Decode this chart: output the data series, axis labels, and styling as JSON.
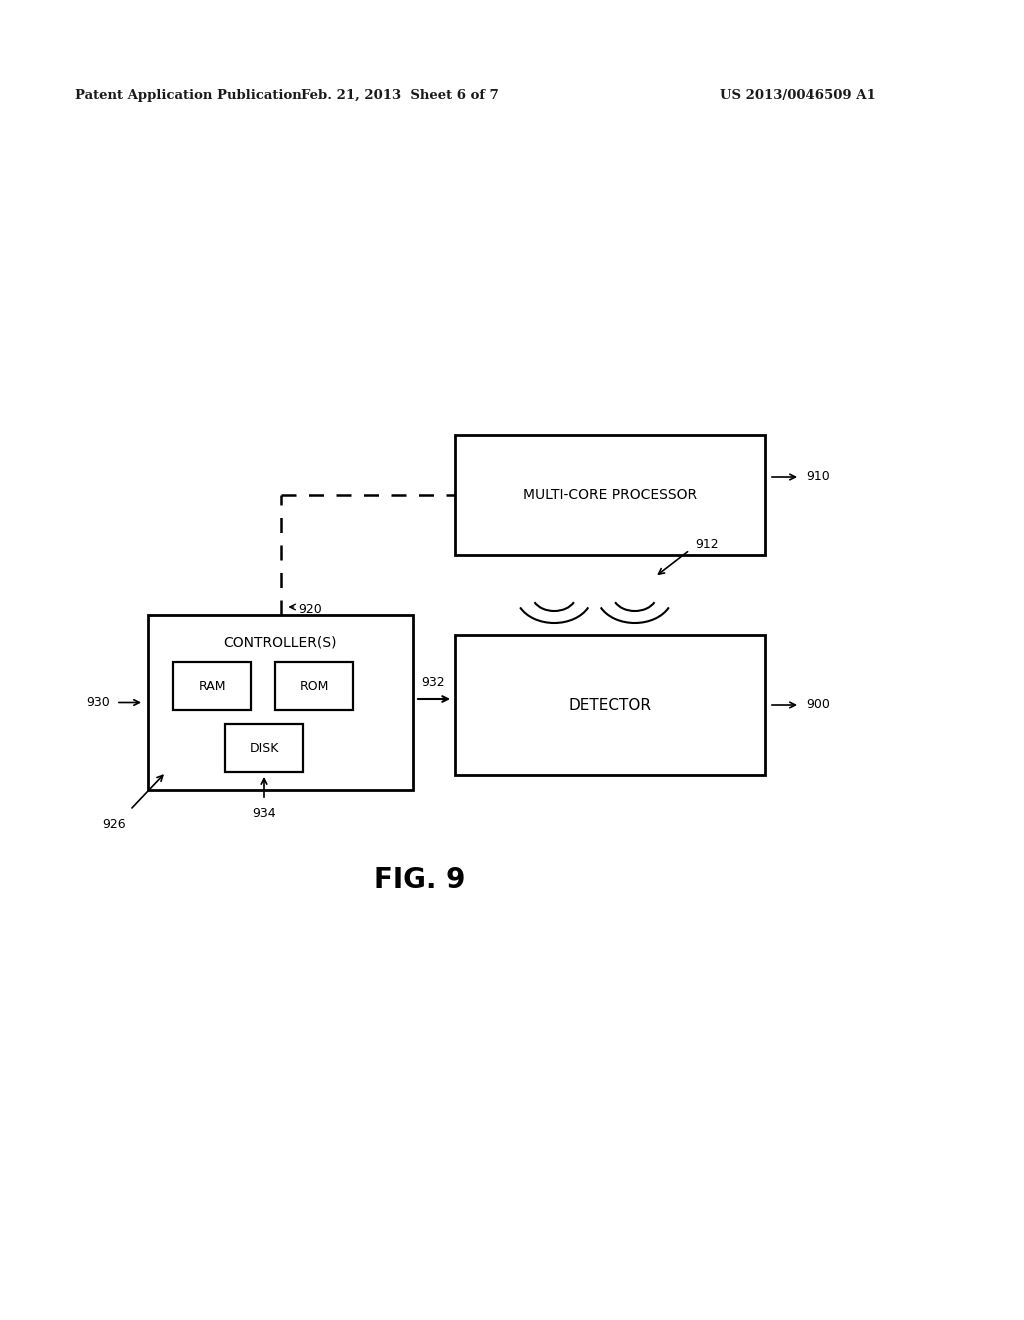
{
  "bg_color": "#ffffff",
  "header_left": "Patent Application Publication",
  "header_mid": "Feb. 21, 2013  Sheet 6 of 7",
  "header_right": "US 2013/0046509 A1",
  "fig_label": "FIG. 9",
  "processor_label": "MULTI-CORE PROCESSOR",
  "processor_ref": "910",
  "detector_label": "DETECTOR",
  "detector_ref": "900",
  "controller_label": "CONTROLLER(S)",
  "controller_ref": "930",
  "ram_label": "RAM",
  "rom_label": "ROM",
  "disk_label": "DISK",
  "ref_912": "912",
  "ref_920": "920",
  "ref_926": "926",
  "ref_932": "932",
  "ref_934": "934"
}
